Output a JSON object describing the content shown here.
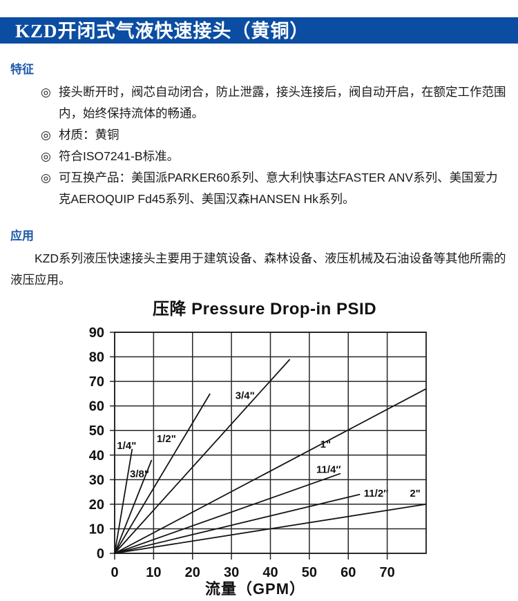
{
  "header": {
    "title": "KZD开闭式气液快速接头（黄铜）",
    "bg_color": "#0b4da2",
    "text_color": "#ffffff"
  },
  "accent_color": "#1a57a8",
  "bullet_char": "◎",
  "features": {
    "heading": "特征",
    "items": [
      "接头断开时，阀芯自动闭合，防止泄露，接头连接后，阀自动开启，在额定工作范围内，始终保持流体的畅通。",
      "材质：黄铜",
      "符合ISO7241-B标准。",
      "可互换产品：美国派PARKER60系列、意大利快事达FASTER ANV系列、美国爱力克AEROQUIP Fd45系列、美国汉森HANSEN Hk系列。"
    ]
  },
  "application": {
    "heading": "应用",
    "text": "KZD系列液压快速接头主要用于建筑设备、森林设备、液压机械及石油设备等其他所需的液压应用。"
  },
  "chart_data": {
    "type": "line",
    "title": "压降 Pressure Drop-in PSID",
    "xlabel": "流量（GPM）",
    "ylabel": "",
    "xlim": [
      0,
      80
    ],
    "ylim": [
      0,
      90
    ],
    "x_ticks": [
      0,
      10,
      20,
      30,
      40,
      50,
      60,
      70
    ],
    "y_ticks": [
      0,
      10,
      20,
      30,
      40,
      50,
      60,
      70,
      80,
      90
    ],
    "grid": true,
    "legend_position": "inline-labels",
    "series": [
      {
        "name": "1/4\"",
        "points": [
          [
            0,
            0
          ],
          [
            4.5,
            42.5
          ]
        ],
        "label_pos": [
          0.6,
          42.5
        ]
      },
      {
        "name": "3/8\"",
        "points": [
          [
            0,
            0
          ],
          [
            9.5,
            38
          ]
        ],
        "label_pos": [
          3.9,
          31
        ]
      },
      {
        "name": "1/2\"",
        "points": [
          [
            0,
            0
          ],
          [
            24.5,
            65
          ]
        ],
        "label_pos": [
          10.8,
          45.3
        ]
      },
      {
        "name": "3/4\"",
        "points": [
          [
            0,
            0
          ],
          [
            45,
            79
          ]
        ],
        "label_pos": [
          31,
          62.8
        ]
      },
      {
        "name": "1\"",
        "points": [
          [
            0,
            0
          ],
          [
            80,
            67
          ]
        ],
        "label_pos": [
          52.8,
          43
        ]
      },
      {
        "name": "11/4″",
        "points": [
          [
            0,
            0
          ],
          [
            58,
            32.5
          ]
        ],
        "label_pos": [
          51.8,
          32.8
        ]
      },
      {
        "name": "11/2″",
        "points": [
          [
            0,
            0
          ],
          [
            63,
            24
          ]
        ],
        "label_pos": [
          64,
          23
        ]
      },
      {
        "name": "2\"",
        "points": [
          [
            0,
            0
          ],
          [
            80,
            20
          ]
        ],
        "label_pos": [
          75.8,
          23
        ]
      }
    ]
  }
}
